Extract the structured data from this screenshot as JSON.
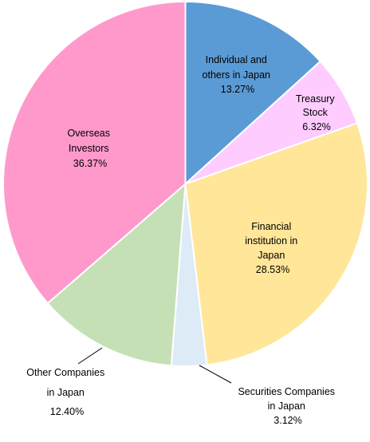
{
  "chart_data": {
    "type": "pie",
    "slices": [
      {
        "lines": [
          "Individual and",
          "others in Japan",
          "13.27%"
        ],
        "value": 13.27,
        "color": "#5b9bd5"
      },
      {
        "lines": [
          "Treasury",
          "Stock",
          "6.32%"
        ],
        "value": 6.32,
        "color": "#ffccff"
      },
      {
        "lines": [
          "Financial",
          "institution in",
          "Japan",
          "28.53%"
        ],
        "value": 28.53,
        "color": "#ffe699"
      },
      {
        "lines": [
          "Securities Companies",
          "in Japan",
          "3.12%"
        ],
        "value": 3.12,
        "color": "#ddebf7"
      },
      {
        "lines": [
          "Other Companies",
          "in Japan",
          "12.40%"
        ],
        "value": 12.4,
        "color": "#c5e0b4"
      },
      {
        "lines": [
          "Overseas",
          "Investors",
          "36.37%"
        ],
        "value": 36.37,
        "color": "#ff99cc"
      }
    ],
    "start_angle_deg": 0,
    "direction": "clockwise",
    "slice_border_color": "#ffffff",
    "leader_line_color": "#000000"
  }
}
